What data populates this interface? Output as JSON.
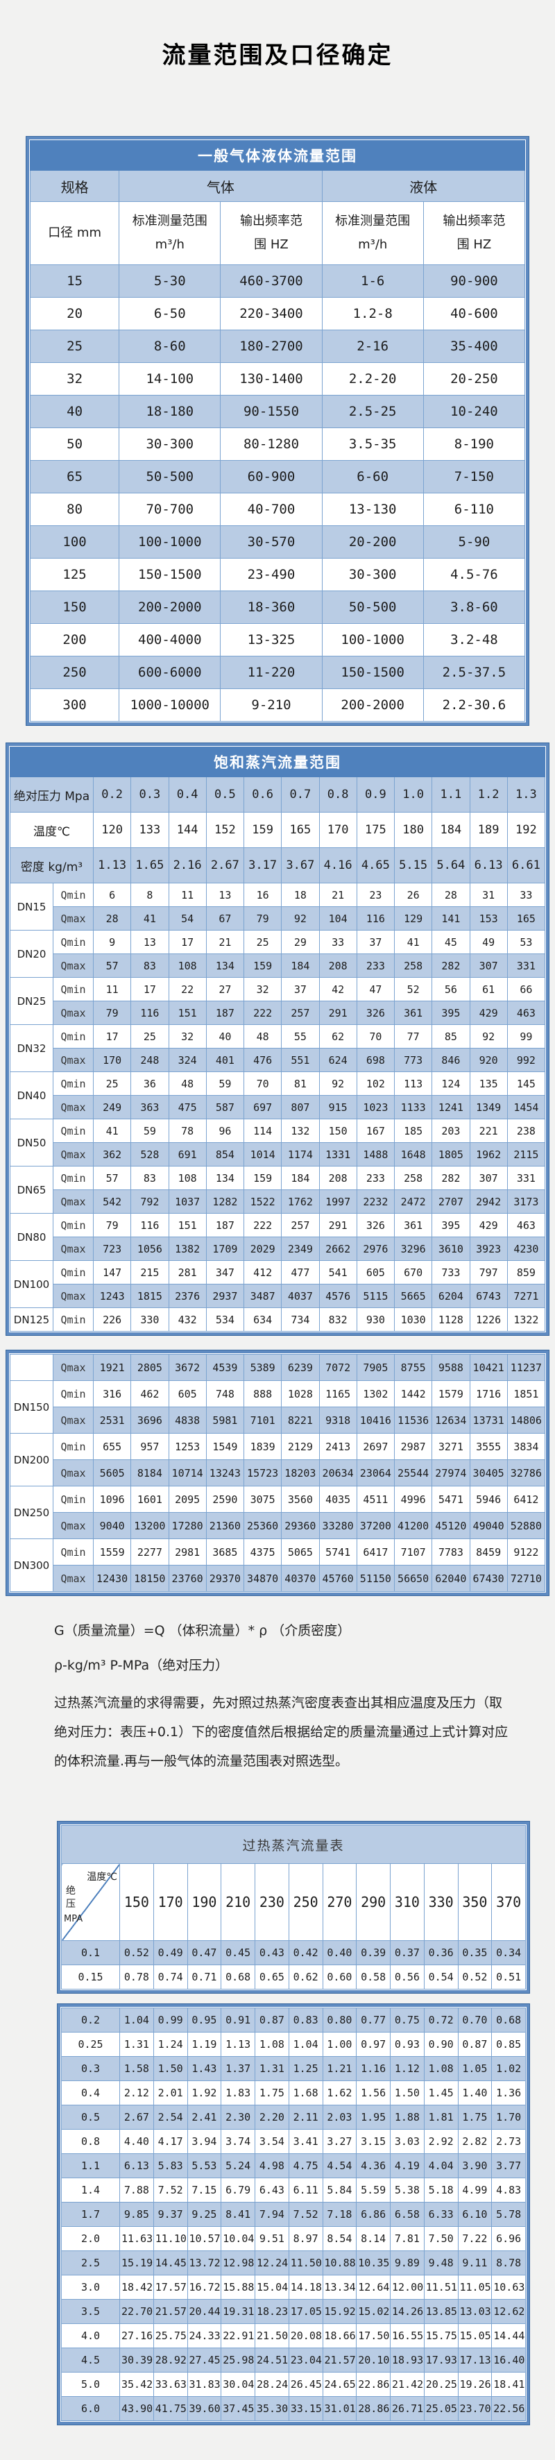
{
  "page_title": "流量范围及口径确定",
  "colors": {
    "header_bar_blue": "#4f81bd",
    "row_highlight_blue": "#b9cce4",
    "grid_line_blue": "#7ba3d0"
  },
  "table1": {
    "title": "一般气体液体流量范围",
    "group_headers": [
      {
        "label": "规格",
        "span": 1
      },
      {
        "label": "气体",
        "span": 2
      },
      {
        "label": "液体",
        "span": 2
      }
    ],
    "sub_headers": [
      {
        "line1": "口径 mm",
        "line2": ""
      },
      {
        "line1": "标准测量范围",
        "line2": "m³/h"
      },
      {
        "line1": "输出频率范",
        "line2": "围 HZ"
      },
      {
        "line1": "标准测量范围",
        "line2": "m³/h"
      },
      {
        "line1": "输出频率范",
        "line2": "围 HZ"
      }
    ],
    "rows": [
      [
        "15",
        "5-30",
        "460-3700",
        "1-6",
        "90-900"
      ],
      [
        "20",
        "6-50",
        "220-3400",
        "1.2-8",
        "40-600"
      ],
      [
        "25",
        "8-60",
        "180-2700",
        "2-16",
        "35-400"
      ],
      [
        "32",
        "14-100",
        "130-1400",
        "2.2-20",
        "20-250"
      ],
      [
        "40",
        "18-180",
        "90-1550",
        "2.5-25",
        "10-240"
      ],
      [
        "50",
        "30-300",
        "80-1280",
        "3.5-35",
        "8-190"
      ],
      [
        "65",
        "50-500",
        "60-900",
        "6-60",
        "7-150"
      ],
      [
        "80",
        "70-700",
        "40-700",
        "13-130",
        "6-110"
      ],
      [
        "100",
        "100-1000",
        "30-570",
        "20-200",
        "5-90"
      ],
      [
        "125",
        "150-1500",
        "23-490",
        "30-300",
        "4.5-76"
      ],
      [
        "150",
        "200-2000",
        "18-360",
        "50-500",
        "3.8-60"
      ],
      [
        "200",
        "400-4000",
        "13-325",
        "100-1000",
        "3.2-48"
      ],
      [
        "250",
        "600-6000",
        "11-220",
        "150-1500",
        "2.5-37.5"
      ],
      [
        "300",
        "1000-10000",
        "9-210",
        "200-2000",
        "2.2-30.6"
      ]
    ]
  },
  "table2": {
    "title": "饱和蒸汽流量范围",
    "pressure_row": {
      "label": "绝对压力 Mpa",
      "values": [
        "0.2",
        "0.3",
        "0.4",
        "0.5",
        "0.6",
        "0.7",
        "0.8",
        "0.9",
        "1.0",
        "1.1",
        "1.2",
        "1.3"
      ]
    },
    "temperature_row": {
      "label": "温度℃",
      "values": [
        "120",
        "133",
        "144",
        "152",
        "159",
        "165",
        "170",
        "175",
        "180",
        "184",
        "189",
        "192"
      ]
    },
    "density_row": {
      "label": "密度 kg/m³",
      "values": [
        "1.13",
        "1.65",
        "2.16",
        "2.67",
        "3.17",
        "3.67",
        "4.16",
        "4.65",
        "5.15",
        "5.64",
        "6.13",
        "6.61"
      ]
    },
    "block1_rows": [
      {
        "dn": "DN15",
        "span": 2,
        "q": "Qmin",
        "values": [
          6,
          8,
          11,
          13,
          16,
          18,
          21,
          23,
          26,
          28,
          31,
          33
        ]
      },
      {
        "q": "Qmax",
        "values": [
          28,
          41,
          54,
          67,
          79,
          92,
          104,
          116,
          129,
          141,
          153,
          165
        ]
      },
      {
        "dn": "DN20",
        "span": 2,
        "q": "Qmin",
        "values": [
          9,
          13,
          17,
          21,
          25,
          29,
          33,
          37,
          41,
          45,
          49,
          53
        ]
      },
      {
        "q": "Qmax",
        "values": [
          57,
          83,
          108,
          134,
          159,
          184,
          208,
          233,
          258,
          282,
          307,
          331
        ]
      },
      {
        "dn": "DN25",
        "span": 2,
        "q": "Qmin",
        "values": [
          11,
          17,
          22,
          27,
          32,
          37,
          42,
          47,
          52,
          56,
          61,
          66
        ]
      },
      {
        "q": "Qmax",
        "values": [
          79,
          116,
          151,
          187,
          222,
          257,
          291,
          326,
          361,
          395,
          429,
          463
        ]
      },
      {
        "dn": "DN32",
        "span": 2,
        "q": "Qmin",
        "values": [
          17,
          25,
          32,
          40,
          48,
          55,
          62,
          70,
          77,
          85,
          92,
          99
        ]
      },
      {
        "q": "Qmax",
        "values": [
          170,
          248,
          324,
          401,
          476,
          551,
          624,
          698,
          773,
          846,
          920,
          992
        ]
      },
      {
        "dn": "DN40",
        "span": 2,
        "q": "Qmin",
        "values": [
          25,
          36,
          48,
          59,
          70,
          81,
          92,
          102,
          113,
          124,
          135,
          145
        ]
      },
      {
        "q": "Qmax",
        "values": [
          249,
          363,
          475,
          587,
          697,
          807,
          915,
          1023,
          1133,
          1241,
          1349,
          1454
        ]
      },
      {
        "dn": "DN50",
        "span": 2,
        "q": "Qmin",
        "values": [
          41,
          59,
          78,
          96,
          114,
          132,
          150,
          167,
          185,
          203,
          221,
          238
        ]
      },
      {
        "q": "Qmax",
        "values": [
          362,
          528,
          691,
          854,
          1014,
          1174,
          1331,
          1488,
          1648,
          1805,
          1962,
          2115
        ]
      },
      {
        "dn": "DN65",
        "span": 2,
        "q": "Qmin",
        "values": [
          57,
          83,
          108,
          134,
          159,
          184,
          208,
          233,
          258,
          282,
          307,
          331
        ]
      },
      {
        "q": "Qmax",
        "values": [
          542,
          792,
          1037,
          1282,
          1522,
          1762,
          1997,
          2232,
          2472,
          2707,
          2942,
          3173
        ]
      },
      {
        "dn": "DN80",
        "span": 2,
        "q": "Qmin",
        "values": [
          79,
          116,
          151,
          187,
          222,
          257,
          291,
          326,
          361,
          395,
          429,
          463
        ]
      },
      {
        "q": "Qmax",
        "values": [
          723,
          1056,
          1382,
          1709,
          2029,
          2349,
          2662,
          2976,
          3296,
          3610,
          3923,
          4230
        ]
      },
      {
        "dn": "DN100",
        "span": 2,
        "q": "Qmin",
        "values": [
          147,
          215,
          281,
          347,
          412,
          477,
          541,
          605,
          670,
          733,
          797,
          859
        ]
      },
      {
        "q": "Qmax",
        "values": [
          1243,
          1815,
          2376,
          2937,
          3487,
          4037,
          4576,
          5115,
          5665,
          6204,
          6743,
          7271
        ]
      },
      {
        "dn": "DN125",
        "span": 1,
        "q": "Qmin",
        "values": [
          226,
          330,
          432,
          534,
          634,
          734,
          832,
          930,
          1030,
          1128,
          1226,
          1322
        ]
      }
    ],
    "block2_rows": [
      {
        "dn": "",
        "span": 1,
        "q": "Qmax",
        "values": [
          1921,
          2805,
          3672,
          4539,
          5389,
          6239,
          7072,
          7905,
          8755,
          9588,
          10421,
          11237
        ]
      },
      {
        "dn": "DN150",
        "span": 2,
        "q": "Qmin",
        "values": [
          316,
          462,
          605,
          748,
          888,
          1028,
          1165,
          1302,
          1442,
          1579,
          1716,
          1851
        ]
      },
      {
        "q": "Qmax",
        "values": [
          2531,
          3696,
          4838,
          5981,
          7101,
          8221,
          9318,
          10416,
          11536,
          12634,
          13731,
          14806
        ]
      },
      {
        "dn": "DN200",
        "span": 2,
        "q": "Qmin",
        "values": [
          655,
          957,
          1253,
          1549,
          1839,
          2129,
          2413,
          2697,
          2987,
          3271,
          3555,
          3834
        ]
      },
      {
        "q": "Qmax",
        "values": [
          5605,
          8184,
          10714,
          13243,
          15723,
          18203,
          20634,
          23064,
          25544,
          27974,
          30405,
          32786
        ]
      },
      {
        "dn": "DN250",
        "span": 2,
        "q": "Qmin",
        "values": [
          1096,
          1601,
          2095,
          2590,
          3075,
          3560,
          4035,
          4511,
          4996,
          5471,
          5946,
          6412
        ]
      },
      {
        "q": "Qmax",
        "values": [
          9040,
          13200,
          17280,
          21360,
          25360,
          29360,
          33280,
          37200,
          41200,
          45120,
          49040,
          52880
        ]
      },
      {
        "dn": "DN300",
        "span": 2,
        "q": "Qmin",
        "values": [
          1559,
          2277,
          2981,
          3685,
          4375,
          5065,
          5741,
          6417,
          7107,
          7783,
          8459,
          9122
        ]
      },
      {
        "q": "Qmax",
        "values": [
          12430,
          18150,
          23760,
          29370,
          34870,
          40370,
          45760,
          51150,
          56650,
          62040,
          67430,
          72710
        ]
      }
    ]
  },
  "notes": {
    "formula": "G（质量流量）=Q （体积流量）* ρ （介质密度）",
    "units": "ρ-kg/m³ P-MPa（绝对压力）",
    "paragraph": "过热蒸汽流量的求得需要，先对照过热蒸汽密度表查出其相应温度及压力（取绝对压力：表压+0.1）下的密度值然后根据给定的质量流量通过上式计算对应的体积流量.再与一般气体的流量范围表对照选型。"
  },
  "table3": {
    "title": "过热蒸汽流量表",
    "corner": {
      "temp_label": "温度℃",
      "pressure_label": "绝压",
      "unit": "MPA"
    },
    "temp_headers": [
      "150",
      "170",
      "190",
      "210",
      "230",
      "250",
      "270",
      "290",
      "310",
      "330",
      "350",
      "370"
    ],
    "block1_rows": [
      {
        "p": "0.1",
        "values": [
          "0.52",
          "0.49",
          "0.47",
          "0.45",
          "0.43",
          "0.42",
          "0.40",
          "0.39",
          "0.37",
          "0.36",
          "0.35",
          "0.34"
        ]
      },
      {
        "p": "0.15",
        "values": [
          "0.78",
          "0.74",
          "0.71",
          "0.68",
          "0.65",
          "0.62",
          "0.60",
          "0.58",
          "0.56",
          "0.54",
          "0.52",
          "0.51"
        ]
      }
    ],
    "block2_rows": [
      {
        "p": "0.2",
        "values": [
          "1.04",
          "0.99",
          "0.95",
          "0.91",
          "0.87",
          "0.83",
          "0.80",
          "0.77",
          "0.75",
          "0.72",
          "0.70",
          "0.68"
        ]
      },
      {
        "p": "0.25",
        "values": [
          "1.31",
          "1.24",
          "1.19",
          "1.13",
          "1.08",
          "1.04",
          "1.00",
          "0.97",
          "0.93",
          "0.90",
          "0.87",
          "0.85"
        ]
      },
      {
        "p": "0.3",
        "values": [
          "1.58",
          "1.50",
          "1.43",
          "1.37",
          "1.31",
          "1.25",
          "1.21",
          "1.16",
          "1.12",
          "1.08",
          "1.05",
          "1.02"
        ]
      },
      {
        "p": "0.4",
        "values": [
          "2.12",
          "2.01",
          "1.92",
          "1.83",
          "1.75",
          "1.68",
          "1.62",
          "1.56",
          "1.50",
          "1.45",
          "1.40",
          "1.36"
        ]
      },
      {
        "p": "0.5",
        "values": [
          "2.67",
          "2.54",
          "2.41",
          "2.30",
          "2.20",
          "2.11",
          "2.03",
          "1.95",
          "1.88",
          "1.81",
          "1.75",
          "1.70"
        ]
      },
      {
        "p": "0.8",
        "values": [
          "4.40",
          "4.17",
          "3.94",
          "3.74",
          "3.54",
          "3.41",
          "3.27",
          "3.15",
          "3.03",
          "2.92",
          "2.82",
          "2.73"
        ]
      },
      {
        "p": "1.1",
        "values": [
          "6.13",
          "5.83",
          "5.53",
          "5.24",
          "4.98",
          "4.75",
          "4.54",
          "4.36",
          "4.19",
          "4.04",
          "3.90",
          "3.77"
        ]
      },
      {
        "p": "1.4",
        "values": [
          "7.88",
          "7.52",
          "7.15",
          "6.79",
          "6.43",
          "6.11",
          "5.84",
          "5.59",
          "5.38",
          "5.18",
          "4.99",
          "4.83"
        ]
      },
      {
        "p": "1.7",
        "values": [
          "9.85",
          "9.37",
          "9.25",
          "8.41",
          "7.94",
          "7.52",
          "7.18",
          "6.86",
          "6.58",
          "6.33",
          "6.10",
          "5.78"
        ]
      },
      {
        "p": "2.0",
        "values": [
          "11.63",
          "11.10",
          "10.57",
          "10.04",
          "9.51",
          "8.97",
          "8.54",
          "8.14",
          "7.81",
          "7.50",
          "7.22",
          "6.96"
        ]
      },
      {
        "p": "2.5",
        "values": [
          "15.19",
          "14.45",
          "13.72",
          "12.98",
          "12.24",
          "11.50",
          "10.88",
          "10.35",
          "9.89",
          "9.48",
          "9.11",
          "8.78"
        ]
      },
      {
        "p": "3.0",
        "values": [
          "18.42",
          "17.57",
          "16.72",
          "15.88",
          "15.04",
          "14.18",
          "13.34",
          "12.64",
          "12.00",
          "11.51",
          "11.05",
          "10.63"
        ]
      },
      {
        "p": "3.5",
        "values": [
          "22.70",
          "21.57",
          "20.44",
          "19.31",
          "18.23",
          "17.05",
          "15.92",
          "15.02",
          "14.26",
          "13.85",
          "13.03",
          "12.62"
        ]
      },
      {
        "p": "4.0",
        "values": [
          "27.16",
          "25.75",
          "24.33",
          "22.91",
          "21.50",
          "20.08",
          "18.66",
          "17.50",
          "16.55",
          "15.75",
          "15.05",
          "14.44"
        ]
      },
      {
        "p": "4.5",
        "values": [
          "30.39",
          "28.92",
          "27.45",
          "25.98",
          "24.51",
          "23.04",
          "21.57",
          "20.10",
          "18.93",
          "17.93",
          "17.13",
          "16.40"
        ]
      },
      {
        "p": "5.0",
        "values": [
          "35.42",
          "33.63",
          "31.83",
          "30.04",
          "28.24",
          "26.45",
          "24.65",
          "22.86",
          "21.42",
          "20.25",
          "19.26",
          "18.41"
        ]
      },
      {
        "p": "6.0",
        "values": [
          "43.90",
          "41.75",
          "39.60",
          "37.45",
          "35.30",
          "33.15",
          "31.01",
          "28.86",
          "26.71",
          "25.05",
          "23.70",
          "22.56"
        ]
      }
    ]
  }
}
